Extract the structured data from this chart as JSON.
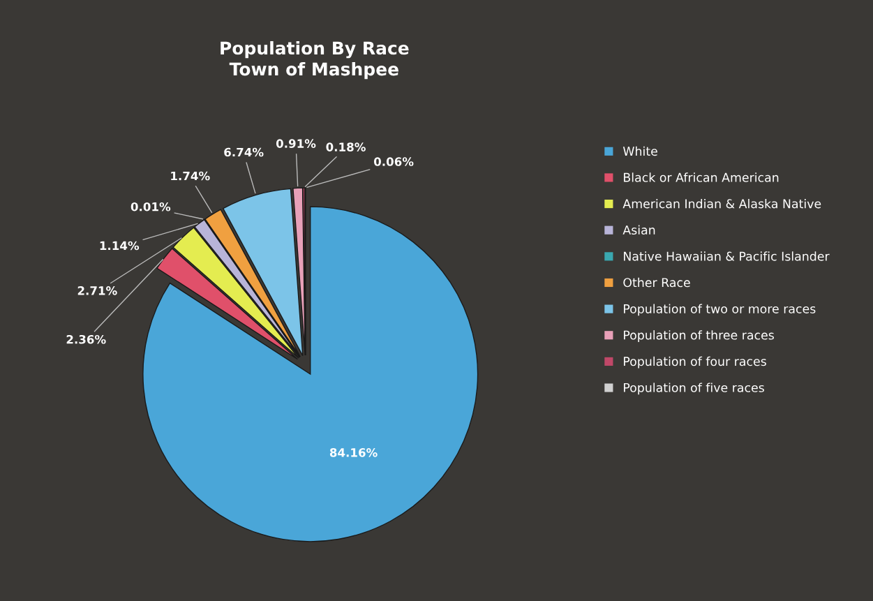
{
  "chart_data": {
    "type": "pie",
    "title": "Population By Race\nTown of Mashpee",
    "categories": [
      "White",
      "Black or African American",
      "American Indian & Alaska Native",
      "Asian",
      "Native Hawaiian & Pacific Islander",
      "Other Race",
      "Population of two or more races",
      "Population of three races",
      "Population of four races",
      "Population of five races"
    ],
    "values": [
      84.16,
      2.36,
      2.71,
      1.14,
      0.01,
      1.74,
      6.74,
      0.91,
      0.18,
      0.06
    ],
    "value_labels": [
      "84.16%",
      "2.36%",
      "2.71%",
      "1.14%",
      "0.01%",
      "1.74%",
      "6.74%",
      "0.91%",
      "0.18%",
      "0.06%"
    ],
    "colors": [
      "#4aa6d8",
      "#e0506a",
      "#e4ec50",
      "#b8b4d8",
      "#3aa8b0",
      "#f0a040",
      "#7cc4e8",
      "#e8a0b8",
      "#c04868",
      "#d0d0d0"
    ],
    "legend": "right"
  }
}
